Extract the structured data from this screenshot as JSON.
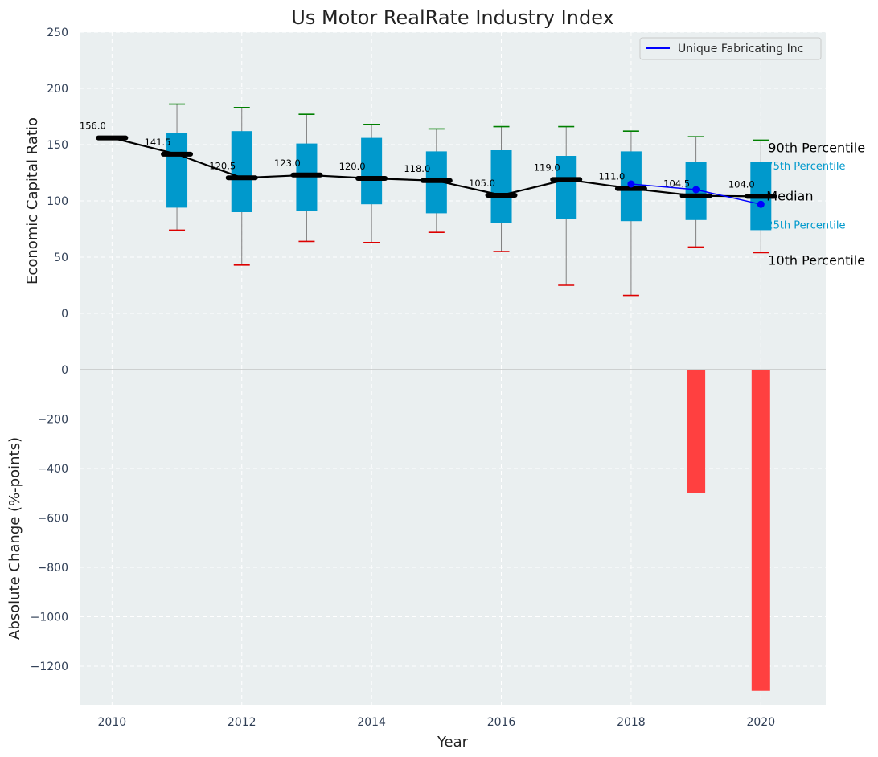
{
  "chart_data": [
    {
      "type": "box",
      "title": "Us Motor RealRate Industry Index",
      "ylabel": "Economic Capital Ratio",
      "ylim": [
        -50,
        250
      ],
      "yticks": [
        0,
        50,
        100,
        150,
        200,
        250
      ],
      "grid": true,
      "legend_position": "top-right",
      "x": [
        2010,
        2011,
        2012,
        2013,
        2014,
        2015,
        2016,
        2017,
        2018,
        2019,
        2020
      ],
      "median": [
        156.0,
        141.5,
        120.5,
        123.0,
        120.0,
        118.0,
        105.0,
        119.0,
        111.0,
        104.5,
        104.0
      ],
      "median_labels": [
        "156.0",
        "141.5",
        "120.5",
        "123.0",
        "120.0",
        "118.0",
        "105.0",
        "119.0",
        "111.0",
        "104.5",
        "104.0"
      ],
      "p25": [
        null,
        94,
        90,
        91,
        97,
        89,
        80,
        84,
        82,
        83,
        74
      ],
      "p75": [
        null,
        160,
        162,
        151,
        156,
        144,
        145,
        140,
        144,
        135,
        135
      ],
      "p10": [
        null,
        74,
        43,
        64,
        63,
        72,
        55,
        25,
        16,
        59,
        54
      ],
      "p90": [
        null,
        186,
        183,
        177,
        168,
        164,
        166,
        166,
        162,
        157,
        154
      ],
      "company": {
        "name": "Unique Fabricating Inc",
        "color": "#0000ff",
        "x": [
          2018,
          2019,
          2020
        ],
        "values": [
          115,
          110,
          97
        ]
      },
      "percentile_annotations": {
        "p90": "90th Percentile",
        "p75": "75th Percentile",
        "median": "Median",
        "p25": "25th Percentile",
        "p10": "10th Percentile"
      },
      "colors": {
        "box": "#0099cc",
        "median_line": "#000000",
        "p90_cap": "#008000",
        "p10_cap": "#dd0000",
        "whisker": "#808080",
        "plot_bg": "#eaeff0"
      }
    },
    {
      "type": "bar",
      "ylabel": "Absolute Change (%-points)",
      "xlabel": "Year",
      "ylim": [
        -1360,
        0
      ],
      "yticks": [
        0,
        -200,
        -400,
        -600,
        -800,
        -1000,
        -1200
      ],
      "xticks": [
        2010,
        2012,
        2014,
        2016,
        2018,
        2020
      ],
      "x": [
        2019,
        2020
      ],
      "values": [
        -498,
        -1300
      ],
      "bar_color": "#ff4040"
    }
  ]
}
